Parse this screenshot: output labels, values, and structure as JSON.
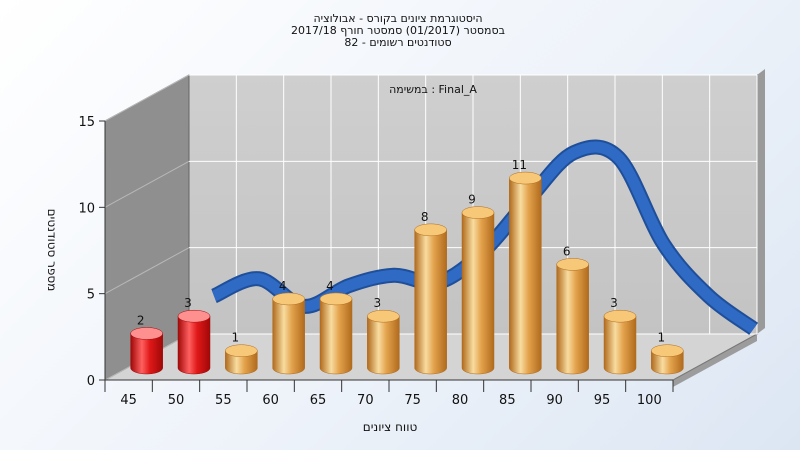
{
  "chart_data": {
    "type": "bar",
    "title_lines": [
      "היסטוגרמת ציונים בקורס - אבולוציה",
      "בסמסטר  (01/2017)  סמסטר חורף  2017/18",
      "סטודנטים רשומים - 82"
    ],
    "subtitle": "במשימה : Final_A",
    "xlabel": "טווח ציונים",
    "ylabel": "מספר סטודנטים",
    "categories": [
      "45",
      "50",
      "55",
      "60",
      "65",
      "70",
      "75",
      "80",
      "85",
      "90",
      "95",
      "100"
    ],
    "values": [
      2,
      3,
      1,
      4,
      4,
      3,
      8,
      9,
      11,
      6,
      3,
      1
    ],
    "value_labels": [
      "2",
      "3",
      "1",
      "4",
      "4",
      "3",
      "8",
      "9",
      "11",
      "6",
      "3",
      "1"
    ],
    "bar_colors": [
      "red",
      "red",
      "orange",
      "orange",
      "orange",
      "orange",
      "orange",
      "orange",
      "orange",
      "orange",
      "orange",
      "orange"
    ],
    "yticks": [
      "0",
      "5",
      "10",
      "15"
    ],
    "ytick_values": [
      0,
      5,
      10,
      15
    ],
    "ylim": [
      0,
      15
    ],
    "grid": true,
    "curve": {
      "type": "distribution",
      "color": "#2f6bc4",
      "values": [
        2.2,
        3.2,
        1.6,
        2.8,
        3.4,
        3.0,
        4.8,
        7.8,
        10.5,
        10.2,
        5.2,
        2.2,
        0.3
      ]
    },
    "colors": {
      "red_light": "#ff6060",
      "red_mid": "#e01818",
      "red_dark": "#a00808",
      "red_top": "#ff9090",
      "orange_light": "#f8dca0",
      "orange_mid": "#e3a24c",
      "orange_dark": "#b06a1c",
      "orange_top": "#f6c878",
      "back_wall": "#c3c3c3",
      "side_wall": "#8f8f8f",
      "floor": "#d4d4d4",
      "grid": "#ffffff"
    }
  }
}
